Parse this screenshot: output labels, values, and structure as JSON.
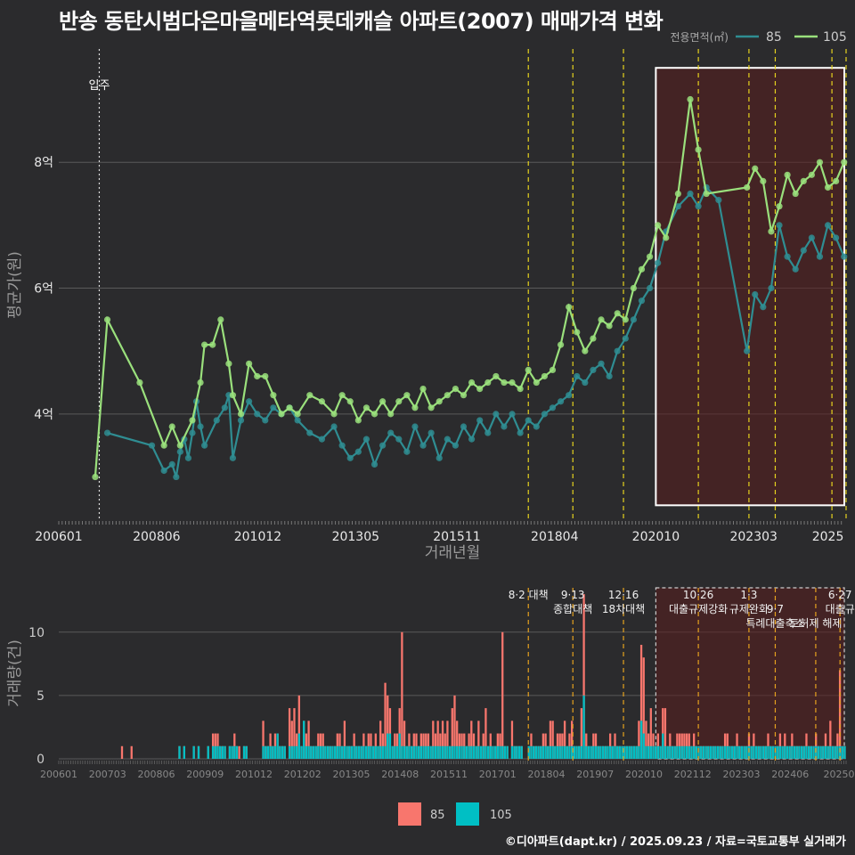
{
  "title": "반송 동탄시범다은마을메타역롯데캐슬 아파트(2007) 매매가격 변화",
  "footer": "©디아파트(dapt.kr) / 2025.09.23 / 자료=국토교통부 실거래가",
  "colors": {
    "s85_line": "#2f8d92",
    "s85_bar": "#f8766d",
    "s105_line": "#9ae07c",
    "s105_bar": "#00bfc4",
    "policy_line": "#e6d21e",
    "shade": "#5a1d1d",
    "grid": "#5a5a5a",
    "text": "#dddddd"
  },
  "chart_data": [
    {
      "type": "line",
      "title": "반송 동탄시범다은마을메타역롯데캐슬 아파트(2007) 매매가격 변화",
      "xlabel": "거래년월",
      "ylabel": "평균가(원)",
      "legend_title": "전용면적(㎡)",
      "legend_position": "top-right",
      "y_ticks": [
        4,
        6,
        8
      ],
      "y_tick_labels": [
        "4억",
        "6억",
        "8억"
      ],
      "ylim": [
        2.3,
        9.8
      ],
      "x_ticks": [
        "200601",
        "200806",
        "201012",
        "201305",
        "201511",
        "201804",
        "202010",
        "202303",
        "2025"
      ],
      "x_tick_pos": [
        2006.0,
        2008.4167,
        2010.9167,
        2013.3333,
        2015.8333,
        2018.25,
        2020.75,
        2023.1667,
        2025.0
      ],
      "xlim": [
        2006.0,
        2025.45
      ],
      "event_label": "입주",
      "event_x": 2007.0,
      "policy_x": [
        2017.6,
        2018.7,
        2019.95,
        2021.8,
        2023.05,
        2023.7,
        2025.1,
        2025.45
      ],
      "highlight_x": [
        2020.75,
        2025.45
      ],
      "highlight_y": [
        2.55,
        9.5
      ],
      "series": [
        {
          "name": "85",
          "x": [
            2007.2,
            2008.3,
            2008.6,
            2008.8,
            2008.9,
            2009.0,
            2009.1,
            2009.2,
            2009.3,
            2009.4,
            2009.5,
            2009.6,
            2009.9,
            2010.1,
            2010.2,
            2010.3,
            2010.5,
            2010.7,
            2010.9,
            2011.1,
            2011.3,
            2011.5,
            2011.7,
            2011.9,
            2012.2,
            2012.5,
            2012.8,
            2013.0,
            2013.2,
            2013.4,
            2013.6,
            2013.8,
            2014.0,
            2014.2,
            2014.4,
            2014.6,
            2014.8,
            2015.0,
            2015.2,
            2015.4,
            2015.6,
            2015.8,
            2016.0,
            2016.2,
            2016.4,
            2016.6,
            2016.8,
            2017.0,
            2017.2,
            2017.4,
            2017.6,
            2017.8,
            2018.0,
            2018.2,
            2018.4,
            2018.6,
            2018.8,
            2019.0,
            2019.2,
            2019.4,
            2019.6,
            2019.8,
            2020.0,
            2020.2,
            2020.4,
            2020.6,
            2020.8,
            2021.0,
            2021.3,
            2021.6,
            2021.8,
            2022.0,
            2022.3,
            2023.0,
            2023.2,
            2023.4,
            2023.6,
            2023.8,
            2024.0,
            2024.2,
            2024.4,
            2024.6,
            2024.8,
            2025.0,
            2025.2,
            2025.4
          ],
          "values": [
            3.7,
            3.5,
            3.1,
            3.2,
            3.0,
            3.4,
            3.6,
            3.3,
            3.7,
            4.2,
            3.8,
            3.5,
            3.9,
            4.1,
            4.3,
            3.3,
            3.9,
            4.2,
            4.0,
            3.9,
            4.1,
            4.0,
            4.1,
            3.9,
            3.7,
            3.6,
            3.8,
            3.5,
            3.3,
            3.4,
            3.6,
            3.2,
            3.5,
            3.7,
            3.6,
            3.4,
            3.8,
            3.5,
            3.7,
            3.3,
            3.6,
            3.5,
            3.8,
            3.6,
            3.9,
            3.7,
            4.0,
            3.8,
            4.0,
            3.7,
            3.9,
            3.8,
            4.0,
            4.1,
            4.2,
            4.3,
            4.6,
            4.5,
            4.7,
            4.8,
            4.6,
            5.0,
            5.2,
            5.5,
            5.8,
            6.0,
            6.4,
            6.9,
            7.3,
            7.5,
            7.3,
            7.6,
            7.4,
            5.0,
            5.9,
            5.7,
            6.0,
            7.0,
            6.5,
            6.3,
            6.6,
            6.8,
            6.5,
            7.0,
            6.8,
            6.5
          ]
        },
        {
          "name": "105",
          "x": [
            2006.9,
            2007.2,
            2008.0,
            2008.6,
            2008.8,
            2009.0,
            2009.3,
            2009.5,
            2009.6,
            2009.8,
            2010.0,
            2010.2,
            2010.3,
            2010.5,
            2010.7,
            2010.9,
            2011.1,
            2011.3,
            2011.5,
            2011.7,
            2011.9,
            2012.2,
            2012.5,
            2012.8,
            2013.0,
            2013.2,
            2013.4,
            2013.6,
            2013.8,
            2014.0,
            2014.2,
            2014.4,
            2014.6,
            2014.8,
            2015.0,
            2015.2,
            2015.4,
            2015.6,
            2015.8,
            2016.0,
            2016.2,
            2016.4,
            2016.6,
            2016.8,
            2017.0,
            2017.2,
            2017.4,
            2017.6,
            2017.8,
            2018.0,
            2018.2,
            2018.4,
            2018.6,
            2018.8,
            2019.0,
            2019.2,
            2019.4,
            2019.6,
            2019.8,
            2020.0,
            2020.2,
            2020.4,
            2020.6,
            2020.8,
            2021.0,
            2021.3,
            2021.6,
            2021.8,
            2022.0,
            2023.0,
            2023.2,
            2023.4,
            2023.6,
            2023.8,
            2024.0,
            2024.2,
            2024.4,
            2024.6,
            2024.8,
            2025.0,
            2025.2,
            2025.4
          ],
          "values": [
            3.0,
            5.5,
            4.5,
            3.5,
            3.8,
            3.5,
            3.9,
            4.5,
            5.1,
            5.1,
            5.5,
            4.8,
            4.3,
            4.0,
            4.8,
            4.6,
            4.6,
            4.3,
            4.0,
            4.1,
            4.0,
            4.3,
            4.2,
            4.0,
            4.3,
            4.2,
            3.9,
            4.1,
            4.0,
            4.2,
            4.0,
            4.2,
            4.3,
            4.1,
            4.4,
            4.1,
            4.2,
            4.3,
            4.4,
            4.3,
            4.5,
            4.4,
            4.5,
            4.6,
            4.5,
            4.5,
            4.4,
            4.7,
            4.5,
            4.6,
            4.7,
            5.1,
            5.7,
            5.3,
            5.0,
            5.2,
            5.5,
            5.4,
            5.6,
            5.5,
            6.0,
            6.3,
            6.5,
            7.0,
            6.8,
            7.5,
            9.0,
            8.2,
            7.5,
            7.6,
            7.9,
            7.7,
            6.9,
            7.3,
            7.8,
            7.5,
            7.7,
            7.8,
            8.0,
            7.6,
            7.7,
            8.0
          ]
        }
      ]
    },
    {
      "type": "bar",
      "ylabel": "거래량(건)",
      "y_ticks": [
        0,
        5,
        10
      ],
      "ylim": [
        0,
        13.5
      ],
      "x_ticks": [
        "200601",
        "200703",
        "200806",
        "200909",
        "201012",
        "201202",
        "201305",
        "201408",
        "201511",
        "201701",
        "201804",
        "201907",
        "202010",
        "202112",
        "202303",
        "202406",
        "20250"
      ],
      "legend_position": "bottom",
      "annotations": [
        {
          "x": 2017.6,
          "lines": [
            "8·2 대책"
          ]
        },
        {
          "x": 2018.7,
          "lines": [
            "9·13",
            "종합대책"
          ]
        },
        {
          "x": 2019.95,
          "lines": [
            "12·16",
            "18차대책"
          ]
        },
        {
          "x": 2021.8,
          "lines": [
            "10·26",
            "대출규제강화"
          ]
        },
        {
          "x": 2023.05,
          "lines": [
            "1·3",
            "규제완화"
          ]
        },
        {
          "x": 2023.7,
          "lines": [
            "",
            "9·7",
            "특례대출축소"
          ]
        },
        {
          "x": 2024.7,
          "lines": [
            "",
            "",
            "토허제 해제"
          ]
        },
        {
          "x": 2025.3,
          "lines": [
            "6·27",
            "대출규"
          ]
        }
      ],
      "series": [
        {
          "name": "85",
          "values": [
            0,
            0,
            0,
            0,
            0,
            0,
            0,
            0,
            0,
            0,
            0,
            0,
            0,
            0,
            0,
            0,
            0,
            0,
            0,
            0,
            0,
            0,
            0,
            0,
            0,
            0,
            1,
            0,
            0,
            0,
            1,
            0,
            0,
            0,
            0,
            0,
            0,
            0,
            0,
            0,
            0,
            0,
            0,
            0,
            0,
            0,
            0,
            0,
            0,
            0,
            1,
            0,
            1,
            0,
            0,
            0,
            1,
            0,
            1,
            0,
            0,
            0,
            1,
            0,
            2,
            2,
            2,
            1,
            1,
            1,
            0,
            1,
            1,
            2,
            1,
            1,
            0,
            1,
            1,
            0,
            0,
            0,
            0,
            0,
            0,
            3,
            1,
            1,
            2,
            1,
            2,
            2,
            1,
            1,
            1,
            0,
            4,
            3,
            4,
            2,
            5,
            1,
            3,
            2,
            3,
            1,
            1,
            1,
            2,
            2,
            2,
            1,
            1,
            1,
            1,
            1,
            2,
            2,
            1,
            3,
            1,
            1,
            1,
            2,
            1,
            1,
            1,
            2,
            1,
            2,
            2,
            1,
            2,
            1,
            3,
            2,
            6,
            5,
            4,
            1,
            2,
            2,
            4,
            10,
            3,
            1,
            2,
            1,
            2,
            2,
            1,
            2,
            2,
            2,
            2,
            1,
            3,
            2,
            3,
            2,
            3,
            2,
            3,
            1,
            4,
            5,
            3,
            2,
            2,
            2,
            1,
            2,
            3,
            2,
            1,
            3,
            1,
            2,
            4,
            1,
            2,
            1,
            1,
            2,
            2,
            10,
            1,
            1,
            0,
            3,
            1,
            1,
            1,
            1,
            0,
            0,
            1,
            2,
            1,
            1,
            1,
            1,
            2,
            2,
            1,
            3,
            3,
            1,
            2,
            2,
            2,
            3,
            1,
            2,
            3,
            1,
            1,
            1,
            4,
            13,
            2,
            1,
            1,
            2,
            2,
            1,
            1,
            1,
            1,
            1,
            2,
            1,
            2,
            1,
            1,
            1,
            1,
            1,
            1,
            1,
            1,
            1,
            3,
            9,
            8,
            3,
            2,
            4,
            2,
            1,
            2,
            1,
            4,
            4,
            1,
            2,
            1,
            1,
            2,
            2,
            2,
            2,
            2,
            2,
            1,
            2,
            1,
            1,
            1,
            1,
            1,
            1,
            1,
            1,
            1,
            1,
            1,
            1,
            2,
            2,
            1,
            1,
            1,
            2,
            1,
            1,
            1,
            1,
            2,
            1,
            2,
            1,
            1,
            1,
            1,
            1,
            2,
            1,
            1,
            1,
            1,
            2,
            1,
            2,
            1,
            1,
            2,
            1,
            1,
            1,
            1,
            1,
            2,
            1,
            1,
            1,
            2,
            1,
            1,
            1,
            2,
            1,
            3,
            1,
            1,
            2,
            7,
            1,
            1
          ]
        },
        {
          "name": "105",
          "values": [
            0,
            0,
            0,
            0,
            0,
            0,
            0,
            0,
            0,
            0,
            0,
            0,
            0,
            0,
            0,
            0,
            0,
            0,
            0,
            0,
            0,
            0,
            0,
            0,
            0,
            0,
            0,
            0,
            0,
            0,
            0,
            0,
            0,
            0,
            0,
            0,
            0,
            0,
            0,
            0,
            0,
            0,
            0,
            0,
            0,
            0,
            0,
            0,
            0,
            0,
            1,
            0,
            1,
            0,
            0,
            0,
            1,
            0,
            1,
            0,
            0,
            0,
            1,
            0,
            1,
            1,
            1,
            1,
            1,
            1,
            0,
            1,
            1,
            1,
            1,
            0,
            0,
            1,
            1,
            0,
            0,
            0,
            0,
            0,
            0,
            1,
            1,
            1,
            1,
            1,
            1,
            2,
            1,
            1,
            1,
            0,
            1,
            1,
            1,
            1,
            2,
            1,
            3,
            1,
            1,
            1,
            1,
            1,
            1,
            1,
            1,
            1,
            1,
            1,
            1,
            1,
            1,
            1,
            1,
            1,
            1,
            1,
            1,
            1,
            1,
            1,
            1,
            1,
            1,
            1,
            1,
            1,
            1,
            1,
            1,
            1,
            1,
            2,
            2,
            1,
            1,
            1,
            2,
            1,
            1,
            1,
            1,
            1,
            1,
            1,
            1,
            1,
            1,
            1,
            1,
            1,
            1,
            1,
            1,
            1,
            1,
            1,
            1,
            1,
            1,
            1,
            1,
            1,
            1,
            1,
            1,
            1,
            1,
            1,
            1,
            1,
            1,
            1,
            1,
            1,
            1,
            1,
            1,
            1,
            1,
            1,
            1,
            1,
            0,
            1,
            1,
            1,
            1,
            1,
            0,
            0,
            1,
            1,
            1,
            1,
            1,
            1,
            1,
            1,
            1,
            1,
            1,
            1,
            1,
            1,
            1,
            1,
            1,
            1,
            1,
            1,
            1,
            1,
            1,
            5,
            1,
            1,
            1,
            1,
            1,
            1,
            1,
            1,
            1,
            1,
            1,
            1,
            1,
            1,
            1,
            1,
            1,
            1,
            1,
            1,
            1,
            1,
            1,
            3,
            2,
            1,
            1,
            1,
            1,
            1,
            1,
            1,
            2,
            1,
            1,
            1,
            1,
            1,
            1,
            1,
            1,
            1,
            1,
            1,
            1,
            1,
            1,
            1,
            1,
            1,
            1,
            1,
            1,
            1,
            1,
            1,
            1,
            1,
            1,
            1,
            1,
            1,
            1,
            1,
            1,
            1,
            1,
            1,
            1,
            1,
            1,
            1,
            1,
            1,
            1,
            1,
            1,
            1,
            1,
            1,
            1,
            1,
            1,
            1,
            1,
            1,
            1,
            1,
            1,
            1,
            1,
            1,
            1,
            1,
            1,
            1,
            1,
            1,
            1,
            1,
            1,
            1,
            1,
            1,
            1,
            1,
            1,
            1,
            1,
            1,
            1,
            1,
            3,
            1,
            1
          ]
        }
      ]
    }
  ]
}
